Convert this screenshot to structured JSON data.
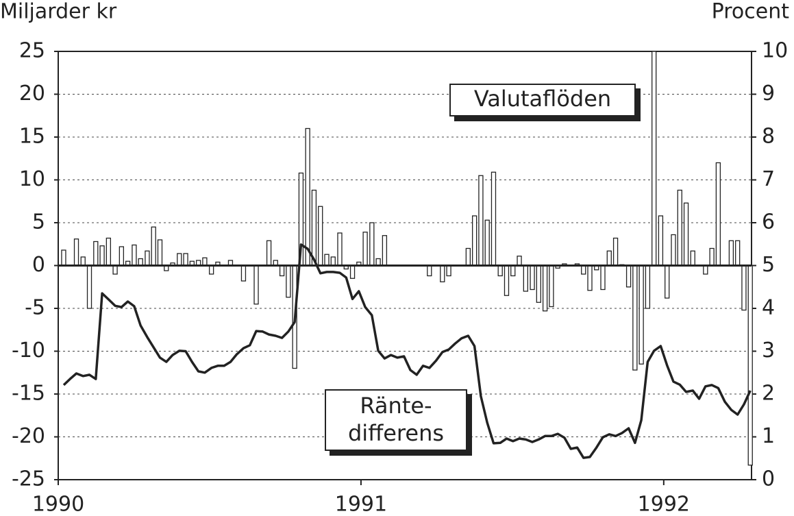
{
  "chart_data": {
    "type": "bar-line",
    "y_label": "Miljarder kr",
    "y2_label": "Procent",
    "xlim": [
      1990,
      1992.29
    ],
    "xticks": [
      1990,
      1991,
      1992
    ],
    "ylim": [
      -25,
      25
    ],
    "yticks": [
      -25,
      -20,
      -15,
      -10,
      -5,
      0,
      5,
      10,
      15,
      20,
      25
    ],
    "y2lim": [
      0,
      10
    ],
    "y2ticks": [
      0,
      1,
      2,
      3,
      4,
      5,
      6,
      7,
      8,
      9,
      10
    ],
    "grid": true,
    "x": [
      1990.018,
      1990.039,
      1990.06,
      1990.082,
      1990.103,
      1990.124,
      1990.145,
      1990.166,
      1990.188,
      1990.209,
      1990.23,
      1990.251,
      1990.272,
      1990.294,
      1990.315,
      1990.336,
      1990.357,
      1990.378,
      1990.4,
      1990.421,
      1990.442,
      1990.463,
      1990.484,
      1990.506,
      1990.527,
      1990.548,
      1990.569,
      1990.59,
      1990.612,
      1990.633,
      1990.654,
      1990.675,
      1990.696,
      1990.718,
      1990.739,
      1990.76,
      1990.781,
      1990.802,
      1990.824,
      1990.845,
      1990.866,
      1990.887,
      1990.908,
      1990.93,
      1990.951,
      1990.972,
      1990.993,
      1991.014,
      1991.036,
      1991.057,
      1991.078,
      1991.099,
      1991.12,
      1991.142,
      1991.163,
      1991.184,
      1991.205,
      1991.226,
      1991.248,
      1991.269,
      1991.29,
      1991.311,
      1991.332,
      1991.354,
      1991.375,
      1991.396,
      1991.417,
      1991.438,
      1991.46,
      1991.481,
      1991.502,
      1991.523,
      1991.544,
      1991.566,
      1991.587,
      1991.608,
      1991.629,
      1991.65,
      1991.672,
      1991.693,
      1991.714,
      1991.735,
      1991.756,
      1991.778,
      1991.799,
      1991.82,
      1991.841,
      1991.862,
      1991.884,
      1991.905,
      1991.926,
      1991.947,
      1991.968,
      1991.99,
      1992.011,
      1992.032,
      1992.053,
      1992.074,
      1992.096,
      1992.117,
      1992.138,
      1992.159,
      1992.18,
      1992.202,
      1992.223,
      1992.244,
      1992.265,
      1992.286
    ],
    "series": [
      {
        "name": "Valutaflöden",
        "type": "bar",
        "color": "#ffffff",
        "values": [
          1.8,
          0,
          3.1,
          1.0,
          -5,
          2.8,
          2.3,
          3.2,
          -1,
          2.2,
          0.5,
          2.4,
          0.8,
          1.7,
          4.5,
          3.0,
          -0.6,
          0.3,
          1.4,
          1.4,
          0.5,
          0.6,
          0.9,
          -1,
          0.4,
          0,
          0.6,
          0,
          -1.8,
          0,
          -4.5,
          0,
          2.9,
          0.6,
          -1.2,
          -3.7,
          -12,
          10.8,
          16,
          8.8,
          6.9,
          1.3,
          1.0,
          3.8,
          -0.4,
          -1.5,
          0.4,
          3.9,
          5.0,
          0.8,
          3.5,
          0,
          0,
          0,
          0,
          0,
          0,
          -1.2,
          0,
          -1.9,
          -1.2,
          0,
          0,
          2.0,
          5.8,
          10.5,
          5.3,
          10.9,
          -1.2,
          -3.5,
          -1.2,
          1.1,
          -3,
          -2.8,
          -4.3,
          -5.3,
          -4.8,
          -0.3,
          0.2,
          0,
          0.2,
          -1,
          -2.9,
          -0.5,
          -2.8,
          1.7,
          3.2,
          0.1,
          -2.5,
          -12.2,
          -11.5,
          -5,
          25,
          5.8,
          -3.8,
          3.6,
          8.8,
          7.3,
          1.7,
          0,
          -1,
          2.0,
          12,
          0,
          2.9,
          2.9,
          -5.2,
          -23.3
        ]
      },
      {
        "name": "Ränte-\ndifferens",
        "type": "line",
        "axis": "y2",
        "color": "#222222",
        "values": [
          2.21,
          2.35,
          2.48,
          2.42,
          2.45,
          2.35,
          4.35,
          4.21,
          4.06,
          4.03,
          4.16,
          4.05,
          3.6,
          3.33,
          3.09,
          2.85,
          2.75,
          2.91,
          3.01,
          3.0,
          2.75,
          2.53,
          2.5,
          2.61,
          2.66,
          2.66,
          2.75,
          2.93,
          3.07,
          3.14,
          3.47,
          3.46,
          3.39,
          3.36,
          3.31,
          3.46,
          3.68,
          5.49,
          5.39,
          5.14,
          4.82,
          4.85,
          4.85,
          4.83,
          4.72,
          4.22,
          4.4,
          4.03,
          3.84,
          3.01,
          2.83,
          2.91,
          2.85,
          2.88,
          2.56,
          2.45,
          2.66,
          2.61,
          2.78,
          2.98,
          3.04,
          3.18,
          3.3,
          3.36,
          3.12,
          1.95,
          1.33,
          0.85,
          0.86,
          0.96,
          0.9,
          0.96,
          0.94,
          0.88,
          0.94,
          1.02,
          1.02,
          1.07,
          0.98,
          0.72,
          0.75,
          0.51,
          0.53,
          0.75,
          0.99,
          1.06,
          1.02,
          1.09,
          1.2,
          0.86,
          1.39,
          2.75,
          3.01,
          3.12,
          2.67,
          2.29,
          2.22,
          2.05,
          2.08,
          1.89,
          2.18,
          2.21,
          2.14,
          1.82,
          1.63,
          1.52,
          1.76,
          2.08
        ]
      }
    ]
  }
}
